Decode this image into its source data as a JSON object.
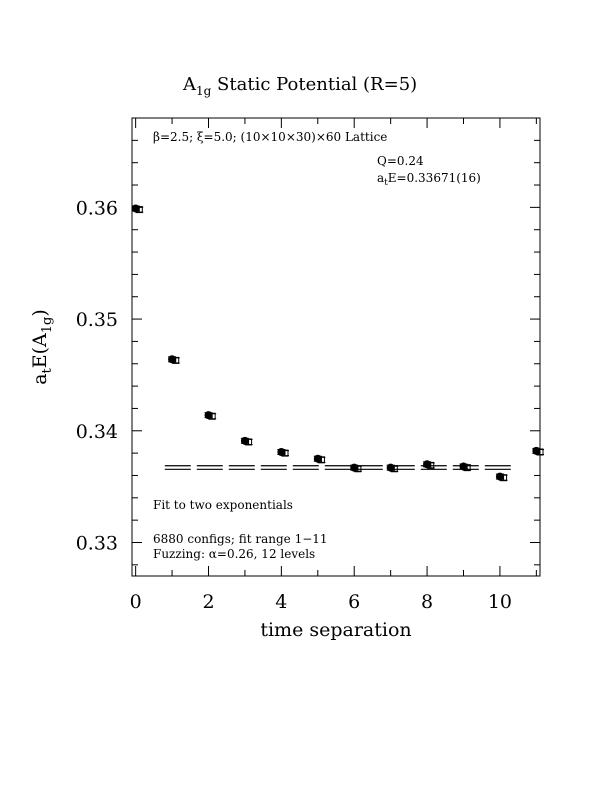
{
  "chart_data": {
    "type": "scatter",
    "title_main": "A",
    "title_sub": "1g",
    "title_rest": " Static Potential (R=5)",
    "xlabel": "time separation",
    "ylabel_main": "a",
    "ylabel_t": "t",
    "ylabel_mid": "E(A",
    "ylabel_sub": "1g",
    "ylabel_end": ")",
    "xlim": [
      -0.1,
      11.1
    ],
    "ylim": [
      0.327,
      0.368
    ],
    "x_ticks": [
      0,
      2,
      4,
      6,
      8,
      10
    ],
    "x_tick_labels": [
      "0",
      "2",
      "4",
      "6",
      "8",
      "10"
    ],
    "y_ticks": [
      0.33,
      0.34,
      0.35,
      0.36
    ],
    "y_tick_labels": [
      "0.33",
      "0.34",
      "0.35",
      "0.36"
    ],
    "grid": false,
    "annotations": {
      "lattice": "β=2.5; ξ=5.0; (10×10×30)×60 Lattice",
      "q": "Q=0.24",
      "energy": "a",
      "energy_sub": "t",
      "energy_rest": "E=0.33671(16)",
      "fit": "Fit to two exponentials",
      "configs": "6880 configs; fit range 1−11",
      "fuzzing": "Fuzzing: α=0.26, 12 levels"
    },
    "series": [
      {
        "marker": "filled-circle",
        "x": [
          0,
          1,
          2,
          3,
          4,
          5,
          6,
          7,
          8,
          9,
          10,
          11
        ],
        "y": [
          0.3599,
          0.3464,
          0.3414,
          0.3391,
          0.3381,
          0.3375,
          0.3367,
          0.3367,
          0.337,
          0.3368,
          0.3359,
          0.3382
        ],
        "err": [
          4e-05,
          4e-05,
          5e-05,
          5e-05,
          5e-05,
          6e-05,
          7e-05,
          7e-05,
          8e-05,
          9e-05,
          0.00012,
          0.00015
        ]
      },
      {
        "marker": "open-square",
        "x": [
          0.1,
          1.1,
          2.1,
          3.1,
          4.1,
          5.1,
          6.1,
          7.1,
          8.1,
          9.1,
          10.1,
          11.1
        ],
        "y": [
          0.3598,
          0.3463,
          0.3413,
          0.339,
          0.338,
          0.3374,
          0.3366,
          0.3366,
          0.3369,
          0.3367,
          0.3358,
          0.3381
        ],
        "err": [
          4e-05,
          4e-05,
          5e-05,
          5e-05,
          5e-05,
          6e-05,
          7e-05,
          7e-05,
          8e-05,
          9e-05,
          0.00012,
          0.00015
        ]
      }
    ],
    "fit": {
      "value": 0.33671,
      "error": 0.00016,
      "x_range": [
        0.8,
        10.4
      ]
    }
  }
}
